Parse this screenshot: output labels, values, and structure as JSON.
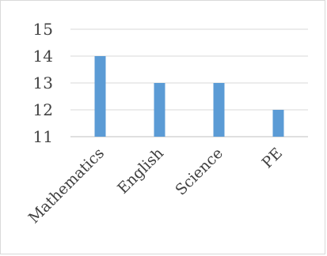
{
  "chart_data": {
    "type": "bar",
    "title": "",
    "xlabel": "",
    "ylabel": "",
    "categories": [
      "Mathematics",
      "English",
      "Science",
      "PE"
    ],
    "values": [
      14,
      13,
      13,
      12
    ],
    "ylim": [
      11,
      15
    ],
    "yticks": [
      11,
      12,
      13,
      14,
      15
    ],
    "grid": true,
    "legend": "none",
    "bar_color": "#5b9bd5",
    "grid_color": "#d9d9d9",
    "text_color": "#404040"
  }
}
